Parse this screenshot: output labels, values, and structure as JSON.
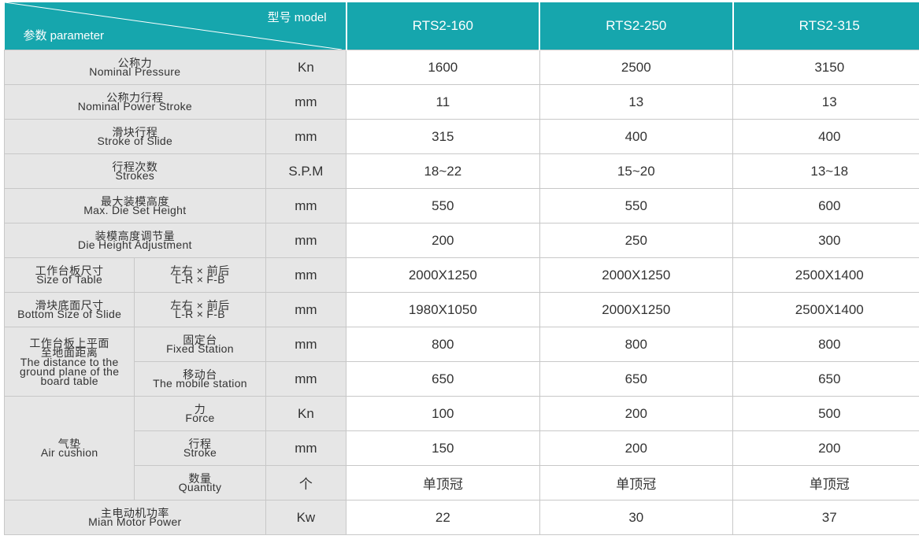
{
  "header": {
    "model_label": "型号 model",
    "param_label": "参数 parameter",
    "models": [
      "RTS2-160",
      "RTS2-250",
      "RTS2-315"
    ]
  },
  "rows": [
    {
      "cn": "公称力",
      "en": "Nominal Pressure",
      "unit": "Kn",
      "values": [
        "1600",
        "2500",
        "3150"
      ]
    },
    {
      "cn": "公称力行程",
      "en": "Nominal Power Stroke",
      "unit": "mm",
      "values": [
        "11",
        "13",
        "13"
      ]
    },
    {
      "cn": "滑块行程",
      "en": "Stroke of Slide",
      "unit": "mm",
      "values": [
        "315",
        "400",
        "400"
      ]
    },
    {
      "cn": "行程次数",
      "en": "Strokes",
      "unit": "S.P.M",
      "values": [
        "18~22",
        "15~20",
        "13~18"
      ]
    },
    {
      "cn": "最大装模高度",
      "en": "Max. Die Set Height",
      "unit": "mm",
      "values": [
        "550",
        "550",
        "600"
      ]
    },
    {
      "cn": "装模高度调节量",
      "en": "Die Height Adjustment",
      "unit": "mm",
      "values": [
        "200",
        "250",
        "300"
      ]
    },
    {
      "cn": "工作台板尺寸",
      "en": "Size of Table",
      "sub_cn": "左右 × 前后",
      "sub_en": "L-R × F-B",
      "unit": "mm",
      "values": [
        "2000X1250",
        "2000X1250",
        "2500X1400"
      ]
    },
    {
      "cn": "滑块底面尺寸",
      "en": "Bottom Size of Slide",
      "sub_cn": "左右 × 前后",
      "sub_en": "L-R × F-B",
      "unit": "mm",
      "values": [
        "1980X1050",
        "2000X1250",
        "2500X1400"
      ]
    }
  ],
  "distance_group": {
    "cn_1": "工作台板上平面",
    "cn_2": "至地面距离",
    "en_1": "The distance to the",
    "en_2": "ground plane of the",
    "en_3": "board table",
    "rows": [
      {
        "sub_cn": "固定台",
        "sub_en": "Fixed Station",
        "unit": "mm",
        "values": [
          "800",
          "800",
          "800"
        ]
      },
      {
        "sub_cn": "移动台",
        "sub_en": "The mobile station",
        "unit": "mm",
        "values": [
          "650",
          "650",
          "650"
        ]
      }
    ]
  },
  "air_cushion": {
    "cn": "气垫",
    "en": "Air cushion",
    "rows": [
      {
        "sub_cn": "力",
        "sub_en": "Force",
        "unit": "Kn",
        "values": [
          "100",
          "200",
          "500"
        ]
      },
      {
        "sub_cn": "行程",
        "sub_en": "Stroke",
        "unit": "mm",
        "values": [
          "150",
          "200",
          "200"
        ]
      },
      {
        "sub_cn": "数量",
        "sub_en": "Quantity",
        "unit": "个",
        "values": [
          "单顶冠",
          "单顶冠",
          "单顶冠"
        ]
      }
    ]
  },
  "motor": {
    "cn": "主电动机功率",
    "en": "Mian Motor Power",
    "unit": "Kw",
    "values": [
      "22",
      "30",
      "37"
    ]
  },
  "colors": {
    "header_bg": "#16a6ad",
    "label_bg": "#e6e6e6",
    "border": "#c8c8c8"
  }
}
